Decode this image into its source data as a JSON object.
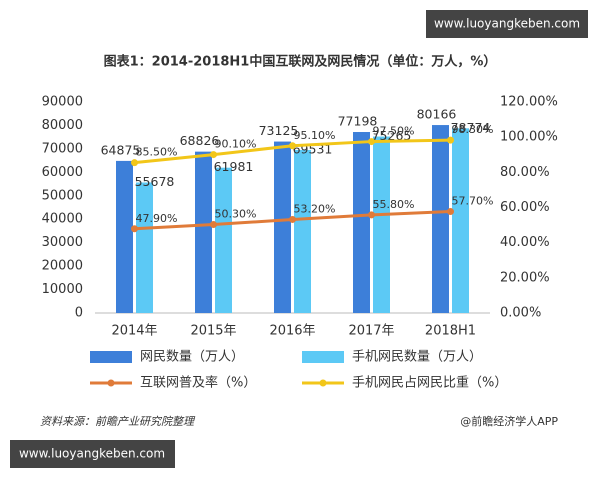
{
  "watermark_top": "www.luoyangkeben.com",
  "chart_data": {
    "type": "bar",
    "title": "图表1：2014-2018H1中国互联网及网民情况（单位：万人，%）",
    "categories": [
      "2014年",
      "2015年",
      "2016年",
      "2017年",
      "2018H1"
    ],
    "series": [
      {
        "name": "网民数量（万人）",
        "type": "bar",
        "color": "#3d7fd9",
        "values": [
          64875,
          68826,
          73125,
          77198,
          80166
        ]
      },
      {
        "name": "手机网民数量（万人）",
        "type": "bar",
        "color": "#5cc9f5",
        "values": [
          55678,
          61981,
          69531,
          75265,
          78774
        ]
      },
      {
        "name": "互联网普及率（%）",
        "type": "line",
        "axis": "y2",
        "color": "#e07b39",
        "values": [
          47.9,
          50.3,
          53.2,
          55.8,
          57.7
        ],
        "value_labels": [
          "47.90%",
          "50.30%",
          "53.20%",
          "55.80%",
          "57.70%"
        ]
      },
      {
        "name": "手机网民占网民比重（%）",
        "type": "line",
        "axis": "y2",
        "color": "#f2c619",
        "values": [
          85.5,
          90.1,
          95.1,
          97.5,
          98.3
        ],
        "value_labels": [
          "85.50%",
          "90.10%",
          "95.10%",
          "97.50%",
          "98.30%"
        ]
      }
    ],
    "ylim": [
      0,
      90000
    ],
    "yticks": [
      0,
      10000,
      20000,
      30000,
      40000,
      50000,
      60000,
      70000,
      80000,
      90000
    ],
    "y2lim": [
      0,
      120
    ],
    "y2ticks": [
      {
        "value": 0,
        "label": "0.00%"
      },
      {
        "value": 20,
        "label": "20.00%"
      },
      {
        "value": 40,
        "label": "40.00%"
      },
      {
        "value": 60,
        "label": "60.00%"
      },
      {
        "value": 80,
        "label": "80.00%"
      },
      {
        "value": 100,
        "label": "100.00%"
      },
      {
        "value": 120,
        "label": "120.00%"
      }
    ],
    "source": "资料来源：前瞻产业研究院整理",
    "credit": "@前瞻经济学人APP"
  },
  "watermark_bottom": "www.luoyangkeben.com"
}
